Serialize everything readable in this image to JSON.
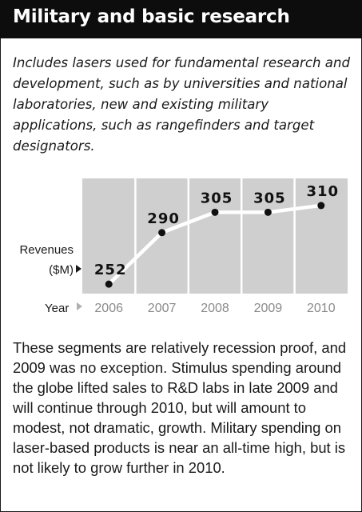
{
  "title": "Military and basic research",
  "intro": "Includes lasers used for fundamental research and development, such as by universities and national laboratories, new and existing military applications, such as rangefinders and target designators.",
  "body": "These segments are relatively recession proof, and 2009 was no exception. Stimulus spending around the globe lifted sales to R&D labs in late 2009 and will continue through 2010, but will amount to modest, not dramatic, growth. Military spending on laser-based products is near an all-time high, but is not likely to grow further in 2010.",
  "chart_data": {
    "type": "line",
    "categories": [
      "2006",
      "2007",
      "2008",
      "2009",
      "2010"
    ],
    "values": [
      252,
      290,
      305,
      305,
      310
    ],
    "ylabel_line1": "Revenues",
    "ylabel_line2": "($M)",
    "xlabel": "Year",
    "ylim": [
      245,
      330
    ],
    "grid": false,
    "colors": {
      "panel": "#cfcfcf",
      "divider": "#ffffff",
      "line": "#ffffff",
      "marker": "#111111",
      "year_text": "#8a8a8a"
    }
  }
}
